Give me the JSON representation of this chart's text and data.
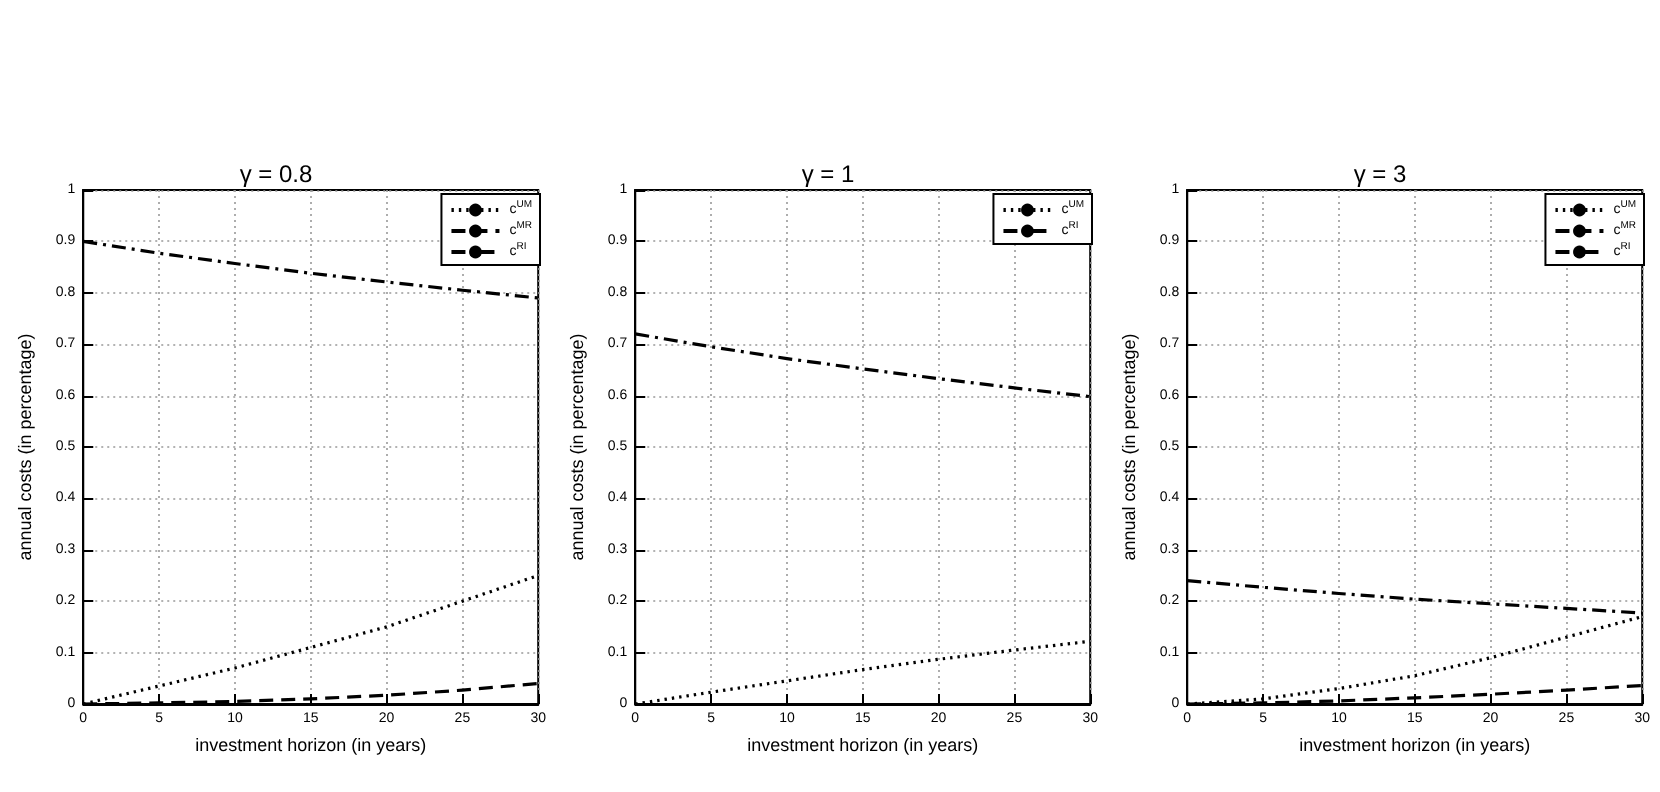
{
  "chart_data": [
    {
      "type": "line",
      "title": "γ = 0.8",
      "xlabel": "investment horizon (in years)",
      "ylabel": "annual costs (in percentage)",
      "x": [
        0,
        5,
        10,
        15,
        20,
        25,
        30
      ],
      "xlim": [
        0,
        30
      ],
      "xticks": [
        0,
        5,
        10,
        15,
        20,
        25,
        30
      ],
      "ylim": [
        0,
        1
      ],
      "yticks": [
        0,
        0.1,
        0.2,
        0.3,
        0.4,
        0.5,
        0.6,
        0.7,
        0.8,
        0.9,
        1
      ],
      "grid": true,
      "legend": "top right",
      "series": [
        {
          "name": "c$^{UM}$",
          "color": "#000000",
          "line_style": "dotted",
          "values": [
            0,
            0.035,
            0.07,
            0.11,
            0.15,
            0.2,
            0.25
          ]
        },
        {
          "name": "c$^{MR}$",
          "color": "#000000",
          "line_style": "dashed",
          "values": [
            0,
            0.002,
            0.005,
            0.01,
            0.017,
            0.027,
            0.04
          ]
        },
        {
          "name": "c$^{RI}$",
          "color": "#000000",
          "line_style": "dashdot",
          "values": [
            0.9,
            0.877,
            0.857,
            0.838,
            0.821,
            0.805,
            0.79
          ]
        }
      ]
    },
    {
      "type": "line",
      "title": "γ = 1",
      "xlabel": "investment horizon (in years)",
      "ylabel": "annual costs (in percentage)",
      "x": [
        0,
        5,
        10,
        15,
        20,
        25,
        30
      ],
      "xlim": [
        0,
        30
      ],
      "xticks": [
        0,
        5,
        10,
        15,
        20,
        25,
        30
      ],
      "ylim": [
        0,
        1
      ],
      "yticks": [
        0,
        0.1,
        0.2,
        0.3,
        0.4,
        0.5,
        0.6,
        0.7,
        0.8,
        0.9,
        1
      ],
      "grid": true,
      "legend": "top right",
      "series": [
        {
          "name": "c$^{UM}$",
          "color": "#000000",
          "line_style": "dotted",
          "values": [
            0,
            0.023,
            0.045,
            0.067,
            0.087,
            0.105,
            0.122
          ]
        },
        {
          "name": "c$^{RI}$",
          "color": "#000000",
          "line_style": "dashdot",
          "values": [
            0.72,
            0.695,
            0.672,
            0.652,
            0.633,
            0.615,
            0.598
          ]
        }
      ]
    },
    {
      "type": "line",
      "title": "γ = 3",
      "xlabel": "investment horizon (in years)",
      "ylabel": "annual costs (in percentage)",
      "x": [
        0,
        5,
        10,
        15,
        20,
        25,
        30
      ],
      "xlim": [
        0,
        30
      ],
      "xticks": [
        0,
        5,
        10,
        15,
        20,
        25,
        30
      ],
      "ylim": [
        0,
        1
      ],
      "yticks": [
        0,
        0.1,
        0.2,
        0.3,
        0.4,
        0.5,
        0.6,
        0.7,
        0.8,
        0.9,
        1
      ],
      "grid": true,
      "legend": "top right",
      "series": [
        {
          "name": "c$^{UM}$",
          "color": "#000000",
          "line_style": "dotted",
          "values": [
            0,
            0.01,
            0.03,
            0.055,
            0.09,
            0.13,
            0.17
          ]
        },
        {
          "name": "c$^{MR}$",
          "color": "#000000",
          "line_style": "dashed",
          "values": [
            0,
            0.002,
            0.006,
            0.012,
            0.019,
            0.027,
            0.036
          ]
        },
        {
          "name": "c$^{RI}$",
          "color": "#000000",
          "line_style": "dashdot",
          "values": [
            0.24,
            0.227,
            0.215,
            0.204,
            0.195,
            0.186,
            0.177
          ]
        }
      ]
    }
  ]
}
